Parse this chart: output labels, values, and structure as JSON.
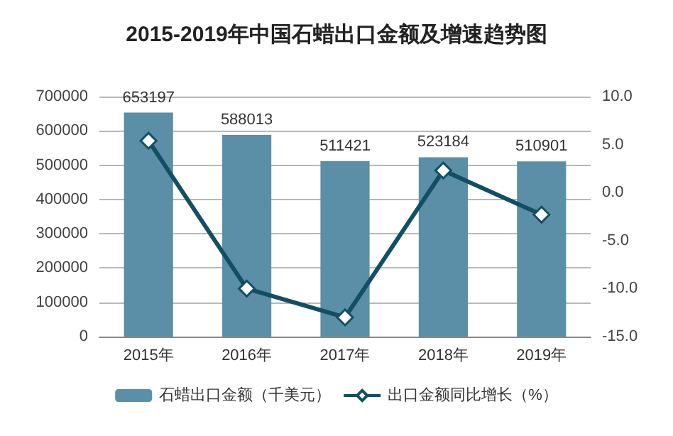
{
  "chart_data": {
    "type": "bar",
    "title": "2015-2019年中国石蜡出口金额及增速趋势图",
    "categories": [
      "2015年",
      "2016年",
      "2017年",
      "2018年",
      "2019年"
    ],
    "series": [
      {
        "name": "石蜡出口金额（千美元）",
        "color": "#5b8fa8",
        "values": [
          653197,
          588013,
          511421,
          523184,
          510901
        ],
        "value_labels": [
          "653197",
          "588013",
          "511421",
          "523184",
          "510901"
        ]
      },
      {
        "name": "出口金额同比增长（%）",
        "type": "line",
        "axis": "y2",
        "color": "#124f62",
        "values": [
          5.4,
          -10.0,
          -13.0,
          2.3,
          -2.3
        ],
        "marker": "diamond"
      }
    ],
    "ylim": [
      0,
      700000
    ],
    "yticks": [
      0,
      100000,
      200000,
      300000,
      400000,
      500000,
      600000,
      700000
    ],
    "y2lim": [
      -15,
      10
    ],
    "y2ticks": [
      {
        "value": -15,
        "label": "-15.0"
      },
      {
        "value": -10,
        "label": "-10.0"
      },
      {
        "value": -5,
        "label": "-5.0"
      },
      {
        "value": 0,
        "label": "0.0"
      },
      {
        "value": 5,
        "label": "5.0"
      },
      {
        "value": 10,
        "label": "10.0"
      }
    ],
    "grid": "y",
    "legend": "bottom"
  }
}
